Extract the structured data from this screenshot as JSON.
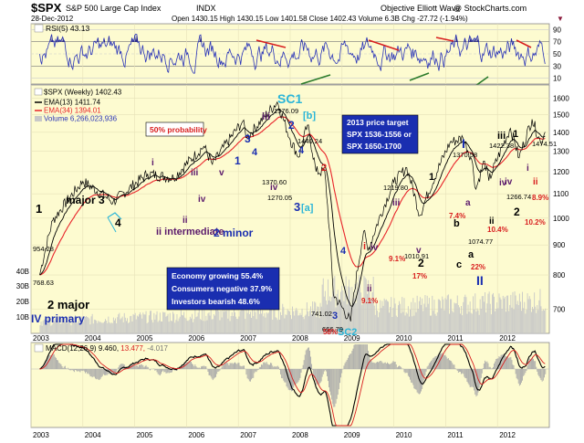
{
  "header": {
    "symbol": "$SPX",
    "name": "S&P 500 Large Cap Index",
    "exchange": "INDX",
    "date": "28-Dec-2012",
    "ohlc": "Open 1430.15  High 1430.15  Low 1401.58  Close 1402.43  Volume 6.3B  Chg -27.72 (-1.94%)",
    "source": "Objective Elliott Wave",
    "copyright": "@ StockCharts.com"
  },
  "rsi_panel": {
    "legend": "RSI(5) 43.13",
    "ticks": [
      "90",
      "70",
      "50",
      "30",
      "10"
    ]
  },
  "price_panel": {
    "legends": [
      "$SPX (Weekly) 1402.43",
      "EMA(13) 1411.74",
      "EMA(34) 1394.01",
      "Volume 6,266,023,936"
    ],
    "right_ticks": [
      "1600",
      "1500",
      "1400",
      "1300",
      "1200",
      "1100",
      "1000",
      "900",
      "800",
      "700"
    ],
    "left_ticks": [
      "40B",
      "30B",
      "20B",
      "10B"
    ],
    "probability": "50% probability",
    "target_box": [
      "2013 price target",
      "SPX 1536-1556 or",
      "SPX 1650-1700"
    ],
    "economy_box": [
      "Economy growing 55.4%",
      "Consumers negative 37.9%",
      "Investors bearish 48.6%"
    ],
    "labels": [
      {
        "t": "SC1",
        "k": "cyan"
      },
      {
        "t": "SC2",
        "k": "cyan"
      },
      {
        "t": "major 3",
        "k": "black"
      },
      {
        "t": "2 major",
        "k": "black"
      },
      {
        "t": "IV primary",
        "k": "blue"
      },
      {
        "t": "ii intermediate",
        "k": "purple"
      },
      {
        "t": "2 minor",
        "k": "blue"
      },
      {
        "t": "1",
        "k": "black"
      },
      {
        "t": "4",
        "k": "black"
      },
      {
        "t": "i",
        "k": "purple"
      },
      {
        "t": "ii",
        "k": "purple"
      },
      {
        "t": "iii",
        "k": "purple"
      },
      {
        "t": "iv",
        "k": "purple"
      },
      {
        "t": "v",
        "k": "purple"
      },
      {
        "t": "1",
        "k": "blue"
      },
      {
        "t": "3",
        "k": "blue"
      },
      {
        "t": "4",
        "k": "blue"
      },
      {
        "t": "iii",
        "k": "purple"
      },
      {
        "t": "iv",
        "k": "purple"
      },
      {
        "t": "2",
        "k": "blue"
      },
      {
        "t": "[b]",
        "k": "cyan"
      },
      {
        "t": "4",
        "k": "blue"
      },
      {
        "t": "3",
        "k": "blue"
      },
      {
        "t": "[a]",
        "k": "cyan"
      },
      {
        "t": "2",
        "k": "red"
      },
      {
        "t": "4",
        "k": "blue"
      },
      {
        "t": "3",
        "k": "blue"
      },
      {
        "t": "i",
        "k": "red"
      },
      {
        "t": "ii",
        "k": "purple"
      },
      {
        "t": "iii",
        "k": "purple"
      },
      {
        "t": "iv",
        "k": "purple"
      },
      {
        "t": "v",
        "k": "purple"
      },
      {
        "t": "1",
        "k": "black"
      },
      {
        "t": "2",
        "k": "black"
      },
      {
        "t": "I",
        "k": "blue"
      },
      {
        "t": "a",
        "k": "purple"
      },
      {
        "t": "b",
        "k": "black"
      },
      {
        "t": "c",
        "k": "black"
      },
      {
        "t": "a",
        "k": "black"
      },
      {
        "t": "ii",
        "k": "black"
      },
      {
        "t": "II",
        "k": "blue"
      },
      {
        "t": "iii",
        "k": "black"
      },
      {
        "t": "1",
        "k": "black"
      },
      {
        "t": "iv",
        "k": "purple"
      },
      {
        "t": "2",
        "k": "black"
      },
      {
        "t": "i",
        "k": "purple"
      },
      {
        "t": "ii",
        "k": "red"
      },
      {
        "t": "iv",
        "k": "purple"
      }
    ],
    "price_notes": [
      "954.28",
      "768.63",
      "1576.09",
      "1440.24",
      "1370.60",
      "1270.05",
      "741.02",
      "666.79",
      "1219.80",
      "1010.91",
      "1370.58",
      "1422.38",
      "1474.51",
      "1266.74",
      "1074.77"
    ],
    "pct_notes": [
      "58%",
      "9.1%",
      "9.1%",
      "17%",
      "7.4%",
      "10.4%",
      "22%",
      "10.2%",
      "8.9%"
    ]
  },
  "macd_panel": {
    "legend_name": "MACD(12,26,9)",
    "legend_macd": "9.460,",
    "legend_signal": "13.477,",
    "legend_hist": "-4.017"
  },
  "x_axis_years": [
    "2003",
    "2004",
    "2005",
    "2006",
    "2007",
    "2008",
    "2009",
    "2010",
    "2011",
    "2012"
  ],
  "colors": {
    "panel_bg": "#fdfbd0",
    "price_line": "#000000",
    "ema13": "#000000",
    "ema34": "#e8242a",
    "rsi_line": "#2b35b8",
    "volume": "#c8c8c8",
    "cyan": "#2ab5d8",
    "blue": "#1a2eb0",
    "purple": "#5b1a6c",
    "red": "#d81e1e"
  },
  "chart_data": {
    "type": "line",
    "title": "$SPX S&P 500 Large Cap Index INDX",
    "xlabel": "",
    "ylabel": "",
    "x": [
      "2003-03",
      "2003-06",
      "2004-01",
      "2004-08",
      "2005-04",
      "2005-10",
      "2006-05",
      "2006-07",
      "2007-02",
      "2007-03",
      "2007-10",
      "2008-01",
      "2008-03",
      "2008-05",
      "2008-07",
      "2008-09",
      "2008-11",
      "2009-03",
      "2009-06",
      "2009-07",
      "2010-01",
      "2010-04",
      "2010-07",
      "2011-02",
      "2011-05",
      "2011-07",
      "2011-08",
      "2011-10",
      "2011-11",
      "2012-04",
      "2012-06",
      "2012-09",
      "2012-11",
      "2012-12"
    ],
    "series": [
      {
        "name": "$SPX (Weekly) 1402.43",
        "values": [
          800,
          990,
          1155,
          1065,
          1190,
          1170,
          1325,
          1235,
          1460,
          1370,
          1576,
          1360,
          1270,
          1440,
          1200,
          1200,
          741,
          667,
          950,
          880,
          1150,
          1219,
          1010,
          1344,
          1370,
          1260,
          1120,
          1250,
          1158,
          1422,
          1266,
          1474,
          1343,
          1402
        ]
      }
    ],
    "ylim": [
      650,
      1650
    ],
    "xlim": [
      "2003-01",
      "2012-12"
    ]
  }
}
